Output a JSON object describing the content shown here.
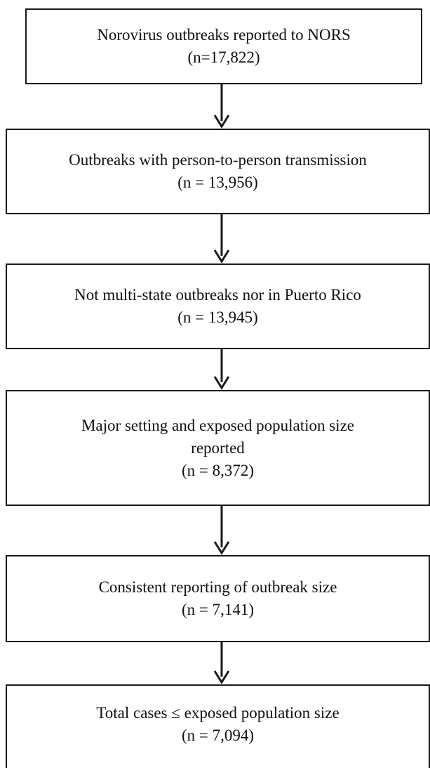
{
  "flowchart": {
    "steps": [
      {
        "label": "Norovirus outbreaks reported to NORS",
        "count": "(n=17,822)"
      },
      {
        "label": "Outbreaks with person-to-person transmission",
        "count": "(n = 13,956)"
      },
      {
        "label": "Not multi-state outbreaks nor in Puerto Rico",
        "count": "(n = 13,945)"
      },
      {
        "label_line1": "Major setting and exposed population size",
        "label_line2": "reported",
        "count": "(n = 8,372)"
      },
      {
        "label": "Consistent reporting of outbreak size",
        "count": "(n = 7,141)"
      },
      {
        "label": "Total cases ≤ exposed population size",
        "count": "(n = 7,094)"
      }
    ]
  }
}
